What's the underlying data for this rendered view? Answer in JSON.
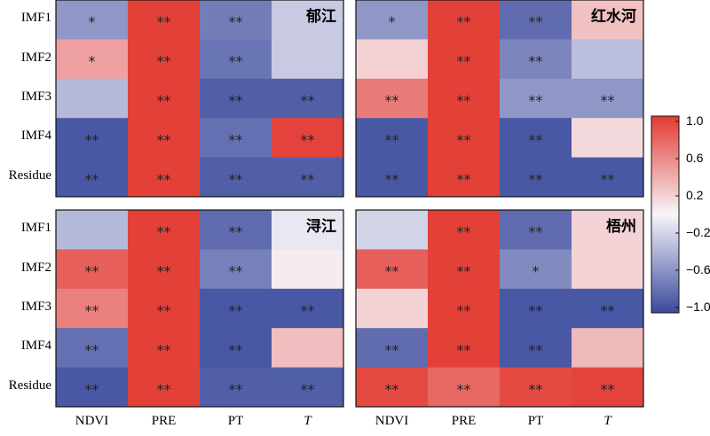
{
  "chart_data": {
    "type": "heatmap",
    "rows": [
      "IMF1",
      "IMF2",
      "IMF3",
      "IMF4",
      "Residue"
    ],
    "columns": [
      "NDVI",
      "PRE",
      "PT",
      "T"
    ],
    "italic_columns": [
      "T"
    ],
    "colorbar": {
      "min": -1.0,
      "max": 1.0,
      "ticks": [
        "1.0",
        "0.6",
        "0.2",
        "−0.2",
        "−0.6",
        "−1.0"
      ]
    },
    "colors": {
      "negative": "#3a4a9c",
      "neutral": "#f7f5fa",
      "positive": "#e23a32"
    },
    "panels": [
      {
        "title": "郁江",
        "values": [
          [
            -0.55,
            0.97,
            -0.7,
            -0.25
          ],
          [
            0.45,
            0.97,
            -0.75,
            -0.25
          ],
          [
            -0.35,
            0.97,
            -0.88,
            -0.88
          ],
          [
            -0.92,
            0.97,
            -0.78,
            0.95
          ],
          [
            -0.92,
            0.97,
            -0.88,
            -0.88
          ]
        ],
        "significance": [
          [
            "*",
            "**",
            "**",
            ""
          ],
          [
            "*",
            "**",
            "**",
            ""
          ],
          [
            "",
            "**",
            "**",
            "**"
          ],
          [
            "**",
            "**",
            "**",
            "**"
          ],
          [
            "**",
            "**",
            "**",
            "**"
          ]
        ]
      },
      {
        "title": "红水河",
        "values": [
          [
            -0.55,
            0.97,
            -0.8,
            0.28
          ],
          [
            0.2,
            0.97,
            -0.65,
            -0.32
          ],
          [
            0.65,
            0.97,
            -0.55,
            -0.55
          ],
          [
            -0.92,
            0.97,
            -0.92,
            0.15
          ],
          [
            -0.92,
            0.97,
            -0.92,
            -0.92
          ]
        ],
        "significance": [
          [
            "*",
            "**",
            "**",
            ""
          ],
          [
            "",
            "**",
            "**",
            ""
          ],
          [
            "**",
            "**",
            "**",
            "**"
          ],
          [
            "**",
            "**",
            "**",
            ""
          ],
          [
            "**",
            "**",
            "**",
            "**"
          ]
        ]
      },
      {
        "title": "浔江",
        "values": [
          [
            -0.35,
            0.97,
            -0.8,
            -0.08
          ],
          [
            0.8,
            0.97,
            -0.68,
            0.05
          ],
          [
            0.62,
            0.97,
            -0.92,
            -0.92
          ],
          [
            -0.78,
            0.97,
            -0.92,
            0.3
          ],
          [
            -0.92,
            0.97,
            -0.88,
            -0.88
          ]
        ],
        "significance": [
          [
            "",
            "**",
            "**",
            ""
          ],
          [
            "**",
            "**",
            "**",
            ""
          ],
          [
            "**",
            "**",
            "**",
            "**"
          ],
          [
            "**",
            "**",
            "**",
            ""
          ],
          [
            "**",
            "**",
            "**",
            "**"
          ]
        ]
      },
      {
        "title": "梧州",
        "values": [
          [
            -0.2,
            0.97,
            -0.8,
            0.18
          ],
          [
            0.8,
            0.97,
            -0.62,
            0.18
          ],
          [
            0.18,
            0.97,
            -0.92,
            -0.92
          ],
          [
            -0.8,
            0.97,
            -0.92,
            0.32
          ],
          [
            0.92,
            0.75,
            0.92,
            0.95
          ]
        ],
        "significance": [
          [
            "",
            "**",
            "**",
            ""
          ],
          [
            "**",
            "**",
            "*",
            ""
          ],
          [
            "",
            "**",
            "**",
            "**"
          ],
          [
            "**",
            "**",
            "**",
            ""
          ],
          [
            "**",
            "**",
            "**",
            "**"
          ]
        ]
      }
    ]
  }
}
